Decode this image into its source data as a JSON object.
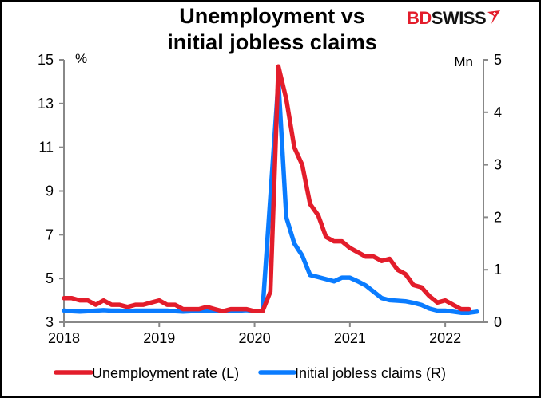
{
  "title": {
    "line1": "Unemployment vs",
    "line2": "initial jobless claims"
  },
  "logo": {
    "bd": "BD",
    "swiss": "SWISS",
    "icon": "bdswiss-arrow-icon"
  },
  "colors": {
    "unemployment": "#e31d2b",
    "claims": "#0a7cff",
    "axis": "#888888"
  },
  "chart_data": {
    "type": "line",
    "title": "Unemployment vs initial jobless claims",
    "xlabel": "",
    "x_tick_labels": [
      "2018",
      "2019",
      "2020",
      "2021",
      "2022"
    ],
    "x_start": "2018-01",
    "x_frequency": "monthly",
    "left_axis": {
      "unit": "%",
      "ylim": [
        3,
        15
      ],
      "ticks": [
        3,
        5,
        7,
        9,
        11,
        13,
        15
      ]
    },
    "right_axis": {
      "unit": "Mn",
      "ylim": [
        0,
        5
      ],
      "ticks": [
        0,
        1,
        2,
        3,
        4,
        5
      ]
    },
    "grid": false,
    "legend_position": "bottom",
    "series": [
      {
        "name": "Unemployment rate (L)",
        "axis": "left",
        "color": "#e31d2b",
        "values": [
          4.1,
          4.1,
          4.0,
          4.0,
          3.8,
          4.0,
          3.8,
          3.8,
          3.7,
          3.8,
          3.8,
          3.9,
          4.0,
          3.8,
          3.8,
          3.6,
          3.6,
          3.6,
          3.7,
          3.6,
          3.5,
          3.6,
          3.6,
          3.6,
          3.5,
          3.5,
          4.4,
          14.7,
          13.2,
          11.0,
          10.2,
          8.4,
          7.9,
          6.9,
          6.7,
          6.7,
          6.4,
          6.2,
          6.0,
          6.0,
          5.8,
          5.9,
          5.4,
          5.2,
          4.7,
          4.6,
          4.2,
          3.9,
          4.0,
          3.8,
          3.6,
          3.6
        ]
      },
      {
        "name": "Initial jobless claims (R)",
        "axis": "right",
        "color": "#0a7cff",
        "values": [
          0.22,
          0.21,
          0.2,
          0.21,
          0.22,
          0.23,
          0.22,
          0.22,
          0.21,
          0.22,
          0.22,
          0.22,
          0.22,
          0.22,
          0.21,
          0.2,
          0.21,
          0.22,
          0.22,
          0.21,
          0.21,
          0.22,
          0.22,
          0.23,
          0.21,
          0.21,
          2.4,
          4.6,
          2.0,
          1.5,
          1.27,
          0.9,
          0.86,
          0.82,
          0.78,
          0.85,
          0.85,
          0.78,
          0.7,
          0.58,
          0.46,
          0.42,
          0.41,
          0.4,
          0.37,
          0.33,
          0.26,
          0.22,
          0.22,
          0.2,
          0.18,
          0.18,
          0.2
        ]
      }
    ]
  },
  "legend": [
    {
      "label": "Unemployment rate (L)",
      "color": "#e31d2b"
    },
    {
      "label": "Initial jobless claims (R)",
      "color": "#0a7cff"
    }
  ]
}
